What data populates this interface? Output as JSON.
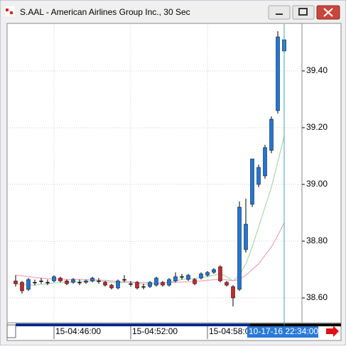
{
  "chart_data": {
    "type": "candlestick",
    "title": "S.AAL - American Airlines Group Inc., 30 Sec",
    "categories": [
      null,
      null,
      null,
      null,
      null,
      null,
      "15-04:46:00",
      null,
      null,
      null,
      null,
      null,
      null,
      null,
      null,
      null,
      null,
      null,
      "15-04:52:00",
      null,
      null,
      null,
      null,
      null,
      null,
      null,
      null,
      null,
      null,
      null,
      "15-04:58:00",
      null,
      null,
      null,
      null,
      null,
      null,
      null,
      null,
      null,
      null,
      null,
      null
    ],
    "open": [
      38.66,
      38.655,
      38.63,
      38.655,
      38.66,
      38.655,
      38.66,
      38.67,
      38.66,
      38.655,
      38.655,
      38.655,
      38.66,
      38.66,
      38.655,
      38.645,
      38.635,
      38.665,
      38.65,
      38.655,
      38.64,
      38.64,
      38.645,
      38.655,
      38.645,
      38.66,
      38.675,
      38.665,
      38.665,
      38.67,
      38.68,
      38.69,
      38.71,
      38.655,
      38.64,
      38.63,
      38.77,
      38.93,
      39.0,
      39.03,
      39.12,
      39.26,
      39.47
    ],
    "high": [
      38.68,
      38.66,
      38.67,
      38.665,
      38.67,
      38.665,
      38.68,
      38.675,
      38.665,
      38.67,
      38.665,
      38.665,
      38.675,
      38.67,
      38.66,
      38.65,
      38.665,
      38.68,
      38.66,
      38.66,
      38.65,
      38.66,
      38.675,
      38.66,
      38.67,
      38.69,
      38.685,
      38.685,
      38.67,
      38.69,
      38.695,
      38.705,
      38.715,
      38.66,
      38.645,
      38.94,
      38.95,
      39.09,
      39.07,
      39.14,
      39.24,
      39.54,
      39.51
    ],
    "low": [
      38.64,
      38.615,
      38.625,
      38.645,
      38.65,
      38.645,
      38.655,
      38.655,
      38.645,
      38.65,
      38.645,
      38.65,
      38.655,
      38.65,
      38.64,
      38.63,
      38.63,
      38.655,
      38.64,
      38.63,
      38.63,
      38.635,
      38.64,
      38.64,
      38.64,
      38.655,
      38.665,
      38.66,
      38.645,
      38.665,
      38.675,
      38.685,
      38.655,
      38.64,
      38.57,
      38.625,
      38.76,
      38.92,
      38.99,
      39.02,
      39.11,
      39.25,
      39.43
    ],
    "close": [
      38.65,
      38.625,
      38.665,
      38.655,
      38.66,
      38.655,
      38.675,
      38.66,
      38.65,
      38.665,
      38.655,
      38.66,
      38.67,
      38.66,
      38.645,
      38.635,
      38.66,
      38.665,
      38.65,
      38.635,
      38.64,
      38.655,
      38.67,
      38.645,
      38.665,
      38.675,
      38.675,
      38.68,
      38.65,
      38.685,
      38.69,
      38.7,
      38.66,
      38.645,
      38.6,
      38.92,
      38.86,
      39.09,
      39.06,
      39.13,
      39.23,
      39.52,
      39.51
    ],
    "up_color": "#1f77d8",
    "down_color": "#c8282d",
    "flat_color": "#000000",
    "series": [
      {
        "color": "#a8d8a8",
        "values": [
          38.65,
          38.648,
          38.645,
          38.645,
          38.648,
          38.65,
          38.653,
          38.655,
          38.655,
          38.656,
          38.657,
          38.658,
          38.66,
          38.66,
          38.658,
          38.655,
          38.653,
          38.655,
          38.655,
          38.652,
          38.648,
          38.648,
          38.65,
          38.652,
          38.655,
          38.66,
          38.665,
          38.668,
          38.668,
          38.672,
          38.675,
          38.68,
          38.685,
          38.675,
          38.66,
          38.68,
          38.72,
          38.78,
          38.85,
          38.92,
          38.99,
          39.08,
          39.17
        ]
      },
      {
        "color": "#f0a0c0",
        "values": [
          38.68,
          38.678,
          38.675,
          38.672,
          38.67,
          38.668,
          38.667,
          38.666,
          38.665,
          38.665,
          38.665,
          38.664,
          38.664,
          38.663,
          38.662,
          38.66,
          38.658,
          38.657,
          38.656,
          38.655,
          38.654,
          38.653,
          38.653,
          38.653,
          38.654,
          38.655,
          38.656,
          38.657,
          38.658,
          38.66,
          38.662,
          38.664,
          38.665,
          38.664,
          38.66,
          38.665,
          38.68,
          38.7,
          38.72,
          38.75,
          38.78,
          38.82,
          38.865
        ]
      }
    ],
    "ylim": [
      38.5125,
      39.5675
    ],
    "yticks": [
      {
        "value": 38.6,
        "label": "38.60"
      },
      {
        "value": 38.8,
        "label": "38.80"
      },
      {
        "value": 39.0,
        "label": "39.00"
      },
      {
        "value": 39.2,
        "label": "39.20"
      },
      {
        "value": 39.4,
        "label": "39.40"
      }
    ],
    "grid": true,
    "cursor_label": "10-17-16 22:34:00"
  }
}
